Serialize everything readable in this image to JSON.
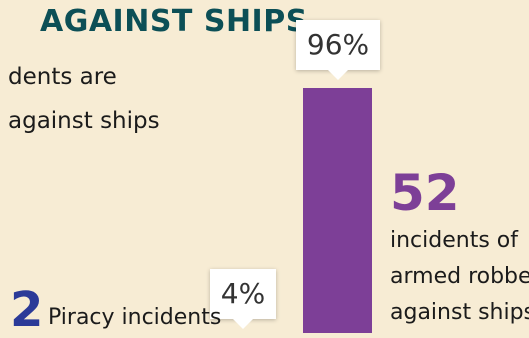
{
  "title": "AGAINST SHIPS",
  "subtitle_line1": "dents are",
  "subtitle_line2": "against ships",
  "colors": {
    "piracy": "#2b3a98",
    "armed_robbery": "#7d3f97",
    "accent_number": "#7d3f97",
    "title": "#0c4f56",
    "piracy_number": "#2b3a98",
    "background": "#f7ecd4"
  },
  "chart_data": {
    "type": "bar",
    "categories": [
      "Piracy incidents",
      "Armed robbery against ships"
    ],
    "values": [
      2,
      52
    ],
    "percent_labels": [
      "4%",
      "96%"
    ],
    "percentages": [
      4,
      96
    ]
  },
  "piracy": {
    "number": "2",
    "label": "Piracy incidents",
    "percent": "4%"
  },
  "robbery": {
    "number": "52",
    "line1": "incidents of",
    "line2": "armed robbery",
    "line3": "against ships",
    "percent": "96%"
  }
}
